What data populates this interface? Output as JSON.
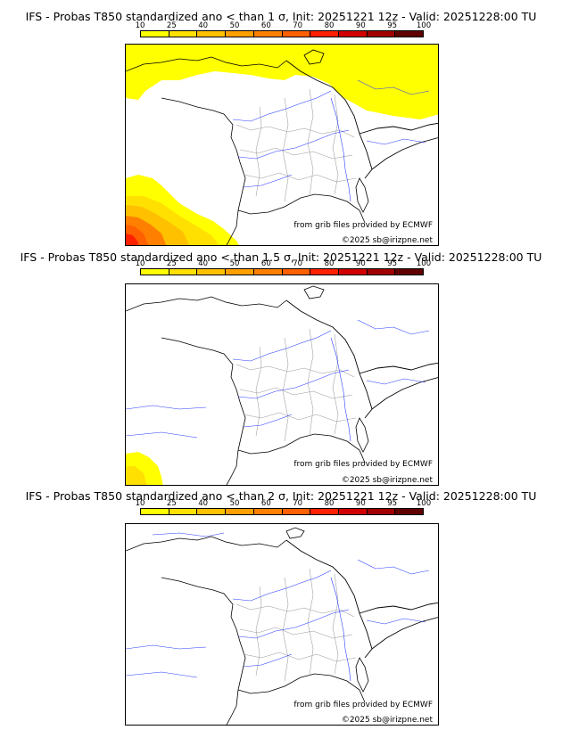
{
  "legend": {
    "ticks": [
      "10",
      "25",
      "40",
      "50",
      "60",
      "70",
      "80",
      "90",
      "95",
      "100"
    ],
    "colors": [
      "#ffff00",
      "#ffe000",
      "#ffc000",
      "#ffa000",
      "#ff8000",
      "#ff6000",
      "#ff2000",
      "#d00000",
      "#a00000",
      "#600000"
    ]
  },
  "panels": [
    {
      "title": "IFS - Probas T850  standardized ano < than 1 σ, Init: 20251221 12z - Valid: 20251228:00 TU",
      "credit": "from grib files provided by ECMWF",
      "copyright": "©2025 sb@irizpne.net",
      "probability_areas": [
        "north (yellow 10-25%)",
        "southwest (yellow to red 10-80%)"
      ]
    },
    {
      "title": "IFS - Probas T850  standardized ano < than 1.5 σ, Init: 20251221 12z - Valid: 20251228:00 TU",
      "credit": "from grib files provided by ECMWF",
      "copyright": "©2025 sb@irizpne.net",
      "probability_areas": [
        "southwest (yellow 10-40%)"
      ]
    },
    {
      "title": "IFS - Probas T850  standardized ano < than 2 σ, Init: 20251221 12z - Valid: 20251228:00 TU",
      "credit": "from grib files provided by ECMWF",
      "copyright": "©2025 sb@irizpne.net",
      "probability_areas": []
    }
  ]
}
